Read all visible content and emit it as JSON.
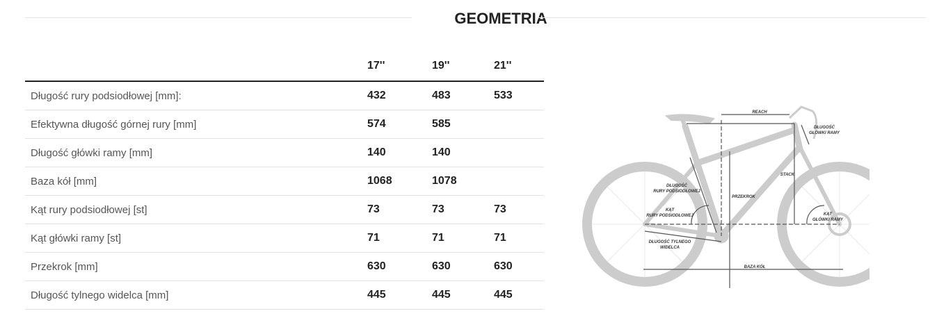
{
  "title": "GEOMETRIA",
  "table": {
    "columns": [
      "",
      "17''",
      "19''",
      "21''"
    ],
    "rows": [
      {
        "label": "Długość rury podsiodłowej [mm]:",
        "values": [
          "432",
          "483",
          "533"
        ]
      },
      {
        "label": "Efektywna długość górnej rury [mm]",
        "values": [
          "574",
          "585",
          ""
        ]
      },
      {
        "label": "Długość główki ramy [mm]",
        "values": [
          "140",
          "140",
          ""
        ]
      },
      {
        "label": "Baza kół [mm]",
        "values": [
          "1068",
          "1078",
          ""
        ]
      },
      {
        "label": "Kąt rury podsiodłowej [st]",
        "values": [
          "73",
          "73",
          "73"
        ]
      },
      {
        "label": "Kąt główki ramy [st]",
        "values": [
          "71",
          "71",
          "71"
        ]
      },
      {
        "label": "Przekrok [mm]",
        "values": [
          "630",
          "630",
          "630"
        ]
      },
      {
        "label": "Długość tylnego widelca [mm]",
        "values": [
          "445",
          "445",
          "445"
        ]
      }
    ]
  },
  "diagram": {
    "reach": "REACH",
    "head_tube_1": "DŁUGOŚĆ",
    "head_tube_2": "GŁÓWKI RAMY",
    "stack": "STACK",
    "seat_tube_1": "DŁUGOŚĆ",
    "seat_tube_2": "RURY PODSIODŁOWEJ",
    "standover": "PRZEKROK",
    "seat_angle_1": "KĄT",
    "seat_angle_2": "RURY PODSIODŁOWEJ",
    "head_angle_1": "KĄT",
    "head_angle_2": "GŁÓWKI RAMY",
    "chainstay_1": "DŁUGOŚĆ TYLNEGO",
    "chainstay_2": "WIDELCA",
    "wheelbase": "BAZA KÓŁ",
    "bike_color": "#cccccc",
    "line_color": "#555555"
  }
}
